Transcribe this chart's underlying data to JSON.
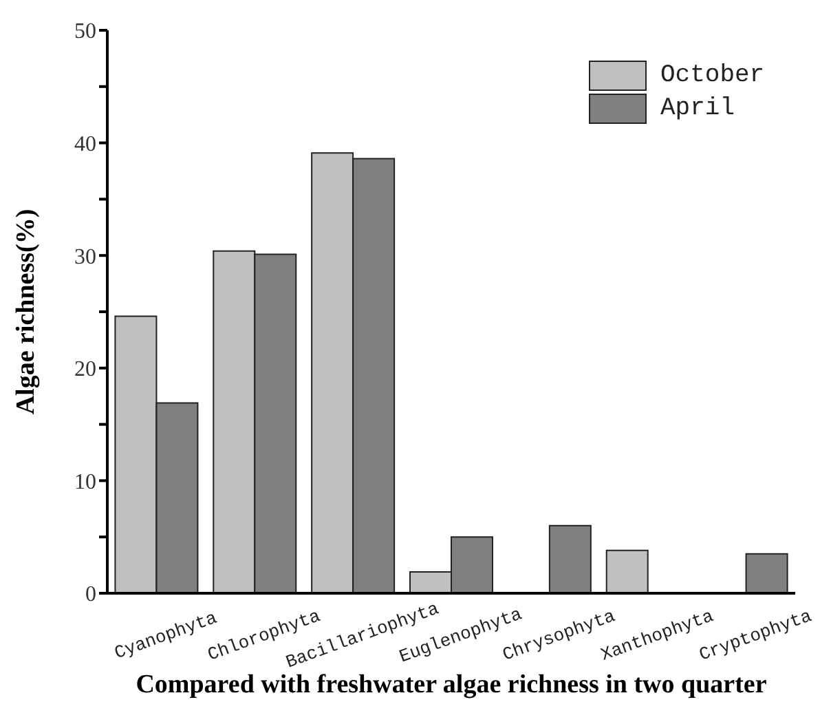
{
  "chart_data": {
    "type": "bar",
    "xlabel": "Compared with freshwater algae richness in two quarter",
    "ylabel": "Algae richness(%)",
    "categories": [
      "Cyanophyta",
      "Chlorophyta",
      "Bacillariophyta",
      "Euglenophyta",
      "Chrysophyta",
      "Xanthophyta",
      "Cryptophyta"
    ],
    "series": [
      {
        "name": "October",
        "color": "#c0c0c0",
        "values": [
          24.6,
          30.4,
          39.1,
          1.9,
          0,
          3.8,
          0
        ]
      },
      {
        "name": "April",
        "color": "#808080",
        "values": [
          16.9,
          30.1,
          38.6,
          5.0,
          6.0,
          0,
          3.5
        ]
      }
    ],
    "ylim": [
      0,
      50
    ],
    "yticks": [
      0,
      {
        "value": 5,
        "label": null
      },
      10,
      {
        "value": 15,
        "label": null
      },
      20,
      {
        "value": 25,
        "label": null
      },
      30,
      {
        "value": 35,
        "label": null
      },
      40,
      {
        "value": 45,
        "label": null
      },
      50
    ],
    "grid": false,
    "legend": "top right"
  }
}
